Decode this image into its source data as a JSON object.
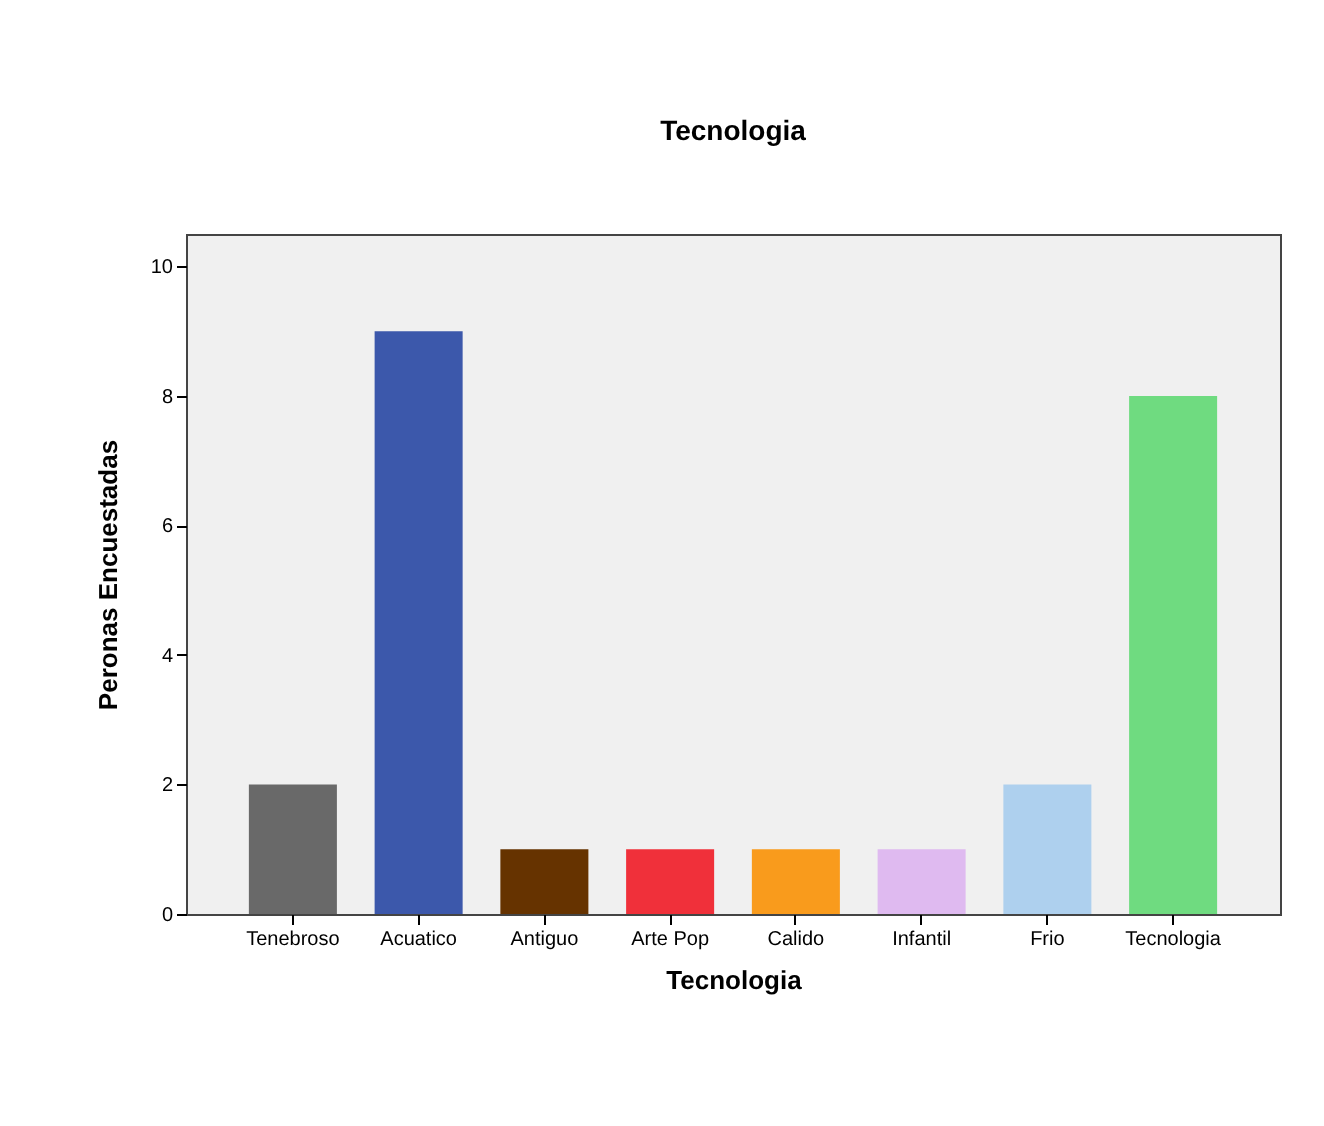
{
  "chart_data": {
    "type": "bar",
    "title": "Tecnologia",
    "xlabel": "Tecnologia",
    "ylabel": "Peronas Encuestadas",
    "categories": [
      "Tenebroso",
      "Acuatico",
      "Antiguo",
      "Arte Pop",
      "Calido",
      "Infantil",
      "Frio",
      "Tecnologia"
    ],
    "values": [
      2,
      9,
      1,
      1,
      1,
      1,
      2,
      8
    ],
    "colors": [
      "#696969",
      "#3c58ab",
      "#663300",
      "#f0303a",
      "#f99b1c",
      "#dfbaf0",
      "#aed0ee",
      "#6fdb80"
    ],
    "ylim": [
      0,
      10.5
    ],
    "yticks": [
      0,
      2,
      4,
      6,
      8,
      10
    ],
    "grid": false,
    "legend": false
  }
}
